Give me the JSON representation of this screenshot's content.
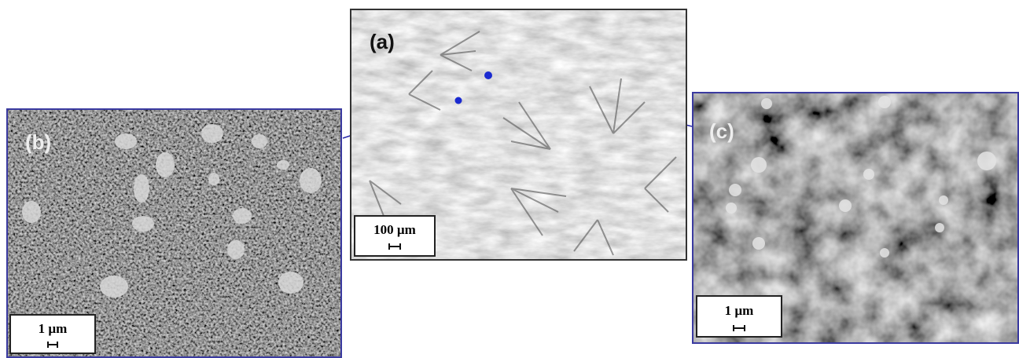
{
  "panels": [
    {
      "label": "(a)",
      "scale": "100 µm"
    },
    {
      "label": "(b)",
      "scale": "1 µm"
    },
    {
      "label": "(c)",
      "scale": "1 µm"
    }
  ]
}
